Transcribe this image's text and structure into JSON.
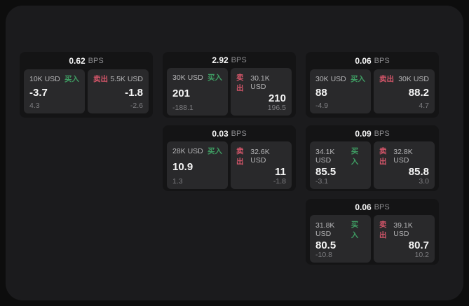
{
  "labels": {
    "bps_unit": "BPS",
    "buy": "买入",
    "sell": "卖出"
  },
  "colors": {
    "panel_bg": "#1b1b1d",
    "outer_bg": "#0d0d0d",
    "card_bg": "#141415",
    "tile_bg": "#29292b",
    "buy_green": "#3f9d63",
    "sell_red": "#d5566a"
  },
  "cards": [
    {
      "bps": "0.62",
      "buy": {
        "amount": "10K USD",
        "value": "-3.7",
        "delta": "4.3"
      },
      "sell": {
        "amount": "5.5K USD",
        "value": "-1.8",
        "delta": "-2.6"
      }
    },
    {
      "bps": "2.92",
      "buy": {
        "amount": "30K USD",
        "value": "201",
        "delta": "-188.1"
      },
      "sell": {
        "amount": "30.1K USD",
        "value": "210",
        "delta": "196.5"
      }
    },
    {
      "bps": "0.06",
      "buy": {
        "amount": "30K USD",
        "value": "88",
        "delta": "-4.9"
      },
      "sell": {
        "amount": "30K USD",
        "value": "88.2",
        "delta": "4.7"
      }
    },
    {
      "bps": "0.03",
      "buy": {
        "amount": "28K USD",
        "value": "10.9",
        "delta": "1.3"
      },
      "sell": {
        "amount": "32.6K USD",
        "value": "11",
        "delta": "-1.8"
      }
    },
    {
      "bps": "0.09",
      "buy": {
        "amount": "34.1K USD",
        "value": "85.5",
        "delta": "-3.1"
      },
      "sell": {
        "amount": "32.8K USD",
        "value": "85.8",
        "delta": "3.0"
      }
    },
    {
      "bps": "0.06",
      "buy": {
        "amount": "31.8K USD",
        "value": "80.5",
        "delta": "-10.8"
      },
      "sell": {
        "amount": "39.1K USD",
        "value": "80.7",
        "delta": "10.2"
      }
    }
  ]
}
